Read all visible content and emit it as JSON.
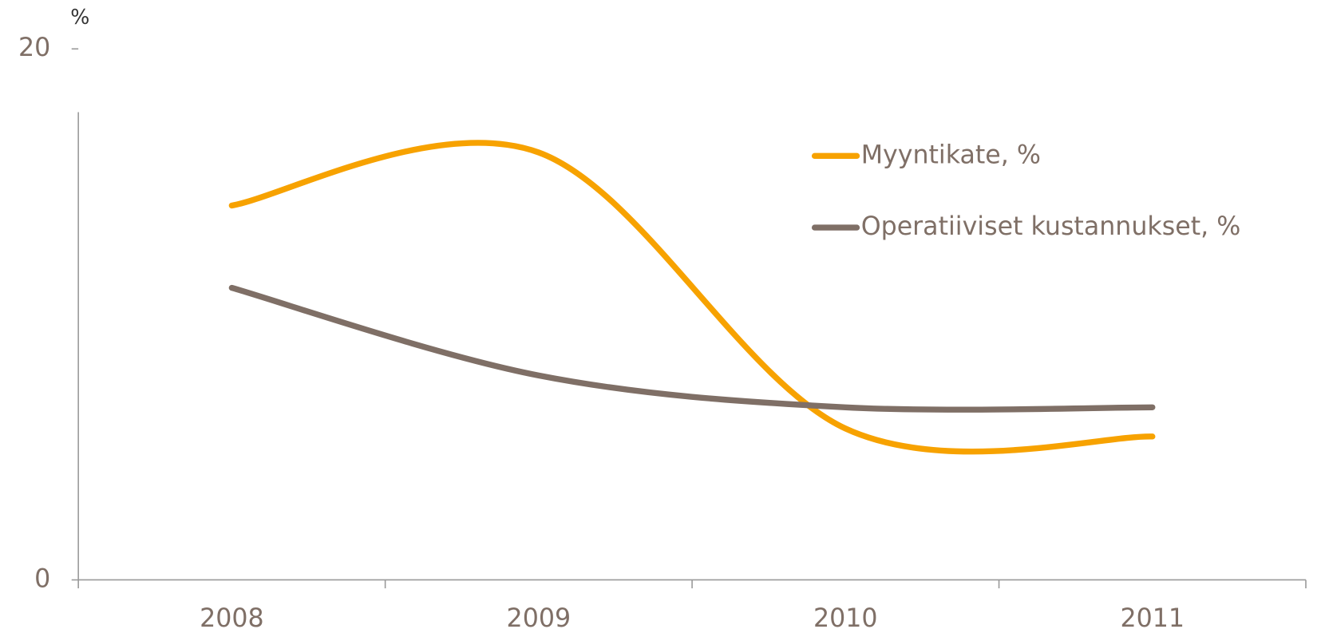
{
  "chart_data": {
    "type": "line",
    "y_label": "%",
    "categories": [
      "2008",
      "2009",
      "2010",
      "2011"
    ],
    "series": [
      {
        "name": "Myyntikate, %",
        "color": "#f7a200",
        "values": [
          14.1,
          16.1,
          5.7,
          5.4
        ]
      },
      {
        "name": "Operatiiviset kustannukset, %",
        "color": "#7f6f66",
        "values": [
          11.0,
          7.7,
          6.5,
          6.5
        ]
      }
    ],
    "ylim": [
      0,
      20
    ],
    "yticks": [
      0,
      20
    ],
    "grid": false,
    "legend": "upper right"
  }
}
